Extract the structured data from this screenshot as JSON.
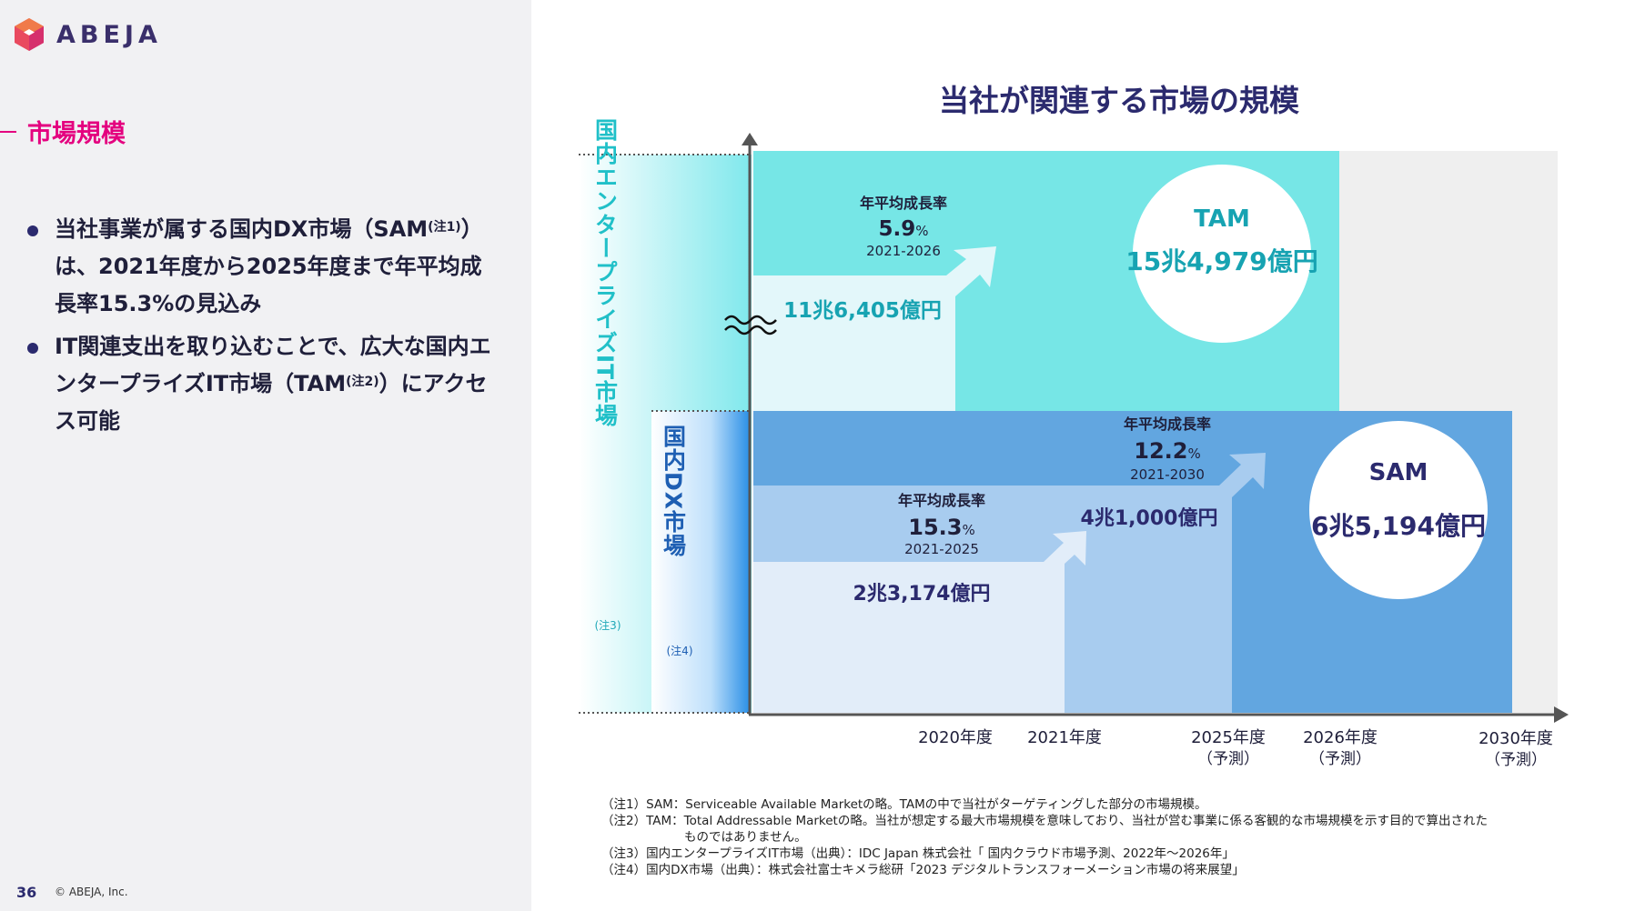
{
  "brand": {
    "logo_text": "ABEJA"
  },
  "section": {
    "title": "市場規模"
  },
  "bullets": [
    {
      "line1": "当社事業が属する国内DX市場（SAM",
      "sup1": "(注1)",
      "rest1": "）は、2021年度から2025年度まで年平均成長率15.3%の見込み"
    },
    {
      "line1": "IT関連支出を取り込むことで、広大な国内エンタープライズIT市場（TAM",
      "sup1": "(注2)",
      "rest1": "）にアクセス可能"
    }
  ],
  "diagram": {
    "title": "当社が関連する市場の規模",
    "left_label_outer": "国内エンタープライズIT市場",
    "left_label_outer_note": "(注3)",
    "left_label_inner": "国内DX市場",
    "left_label_inner_note": "(注4)",
    "tam": {
      "title": "TAM",
      "value": "15兆4,979億円",
      "base_value": "11兆6,405億円",
      "cagr_label": "年平均成長率",
      "cagr_value": "5.9",
      "cagr_unit": "%",
      "cagr_period": "2021-2026"
    },
    "sam": {
      "title": "SAM",
      "value": "6兆5,194億円",
      "mid_value": "4兆1,000億円",
      "base_value": "2兆3,174億円",
      "cagr1_label": "年平均成長率",
      "cagr1_value": "15.3",
      "cagr1_unit": "%",
      "cagr1_period": "2021-2025",
      "cagr2_label": "年平均成長率",
      "cagr2_value": "12.2",
      "cagr2_unit": "%",
      "cagr2_period": "2021-2030"
    },
    "x_axis": [
      {
        "year": "2020年度",
        "sub": ""
      },
      {
        "year": "2021年度",
        "sub": ""
      },
      {
        "year": "2025年度",
        "sub": "（予測）"
      },
      {
        "year": "2026年度",
        "sub": "（予測）"
      },
      {
        "year": "2030年度",
        "sub": "（予測）"
      }
    ],
    "colors": {
      "tam_fill": "#76e6e6",
      "tam_light": "#e3f7fa",
      "sam_fill": "#62a6e0",
      "sam_mid": "#a8ccef",
      "sam_light": "#e2edf9",
      "gray": "#efefef",
      "tam_text": "#17a3b2",
      "sam_text": "#2b2a6e"
    }
  },
  "notes": [
    {
      "text": "（注1）SAM：Serviceable Available Marketの略。TAMの中で当社がターゲティングした部分の市場規模。"
    },
    {
      "text": "（注2）TAM：Total Addressable Marketの略。当社が想定する最大市場規模を意味しており、当社が営む事業に係る客観的な市場規模を示す目的で算出された"
    },
    {
      "text": "ものではありません。",
      "continuation": true
    },
    {
      "text": "（注3）国内エンタープライズIT市場（出典）：IDC Japan 株式会社「 国内クラウド市場予測、2022年～2026年」"
    },
    {
      "text": "（注4）国内DX市場（出典）：株式会社富士キメラ総研「2023 デジタルトランスフォーメーション市場の将来展望」"
    }
  ],
  "footer": {
    "page": "36",
    "copyright": "© ABEJA, Inc."
  }
}
